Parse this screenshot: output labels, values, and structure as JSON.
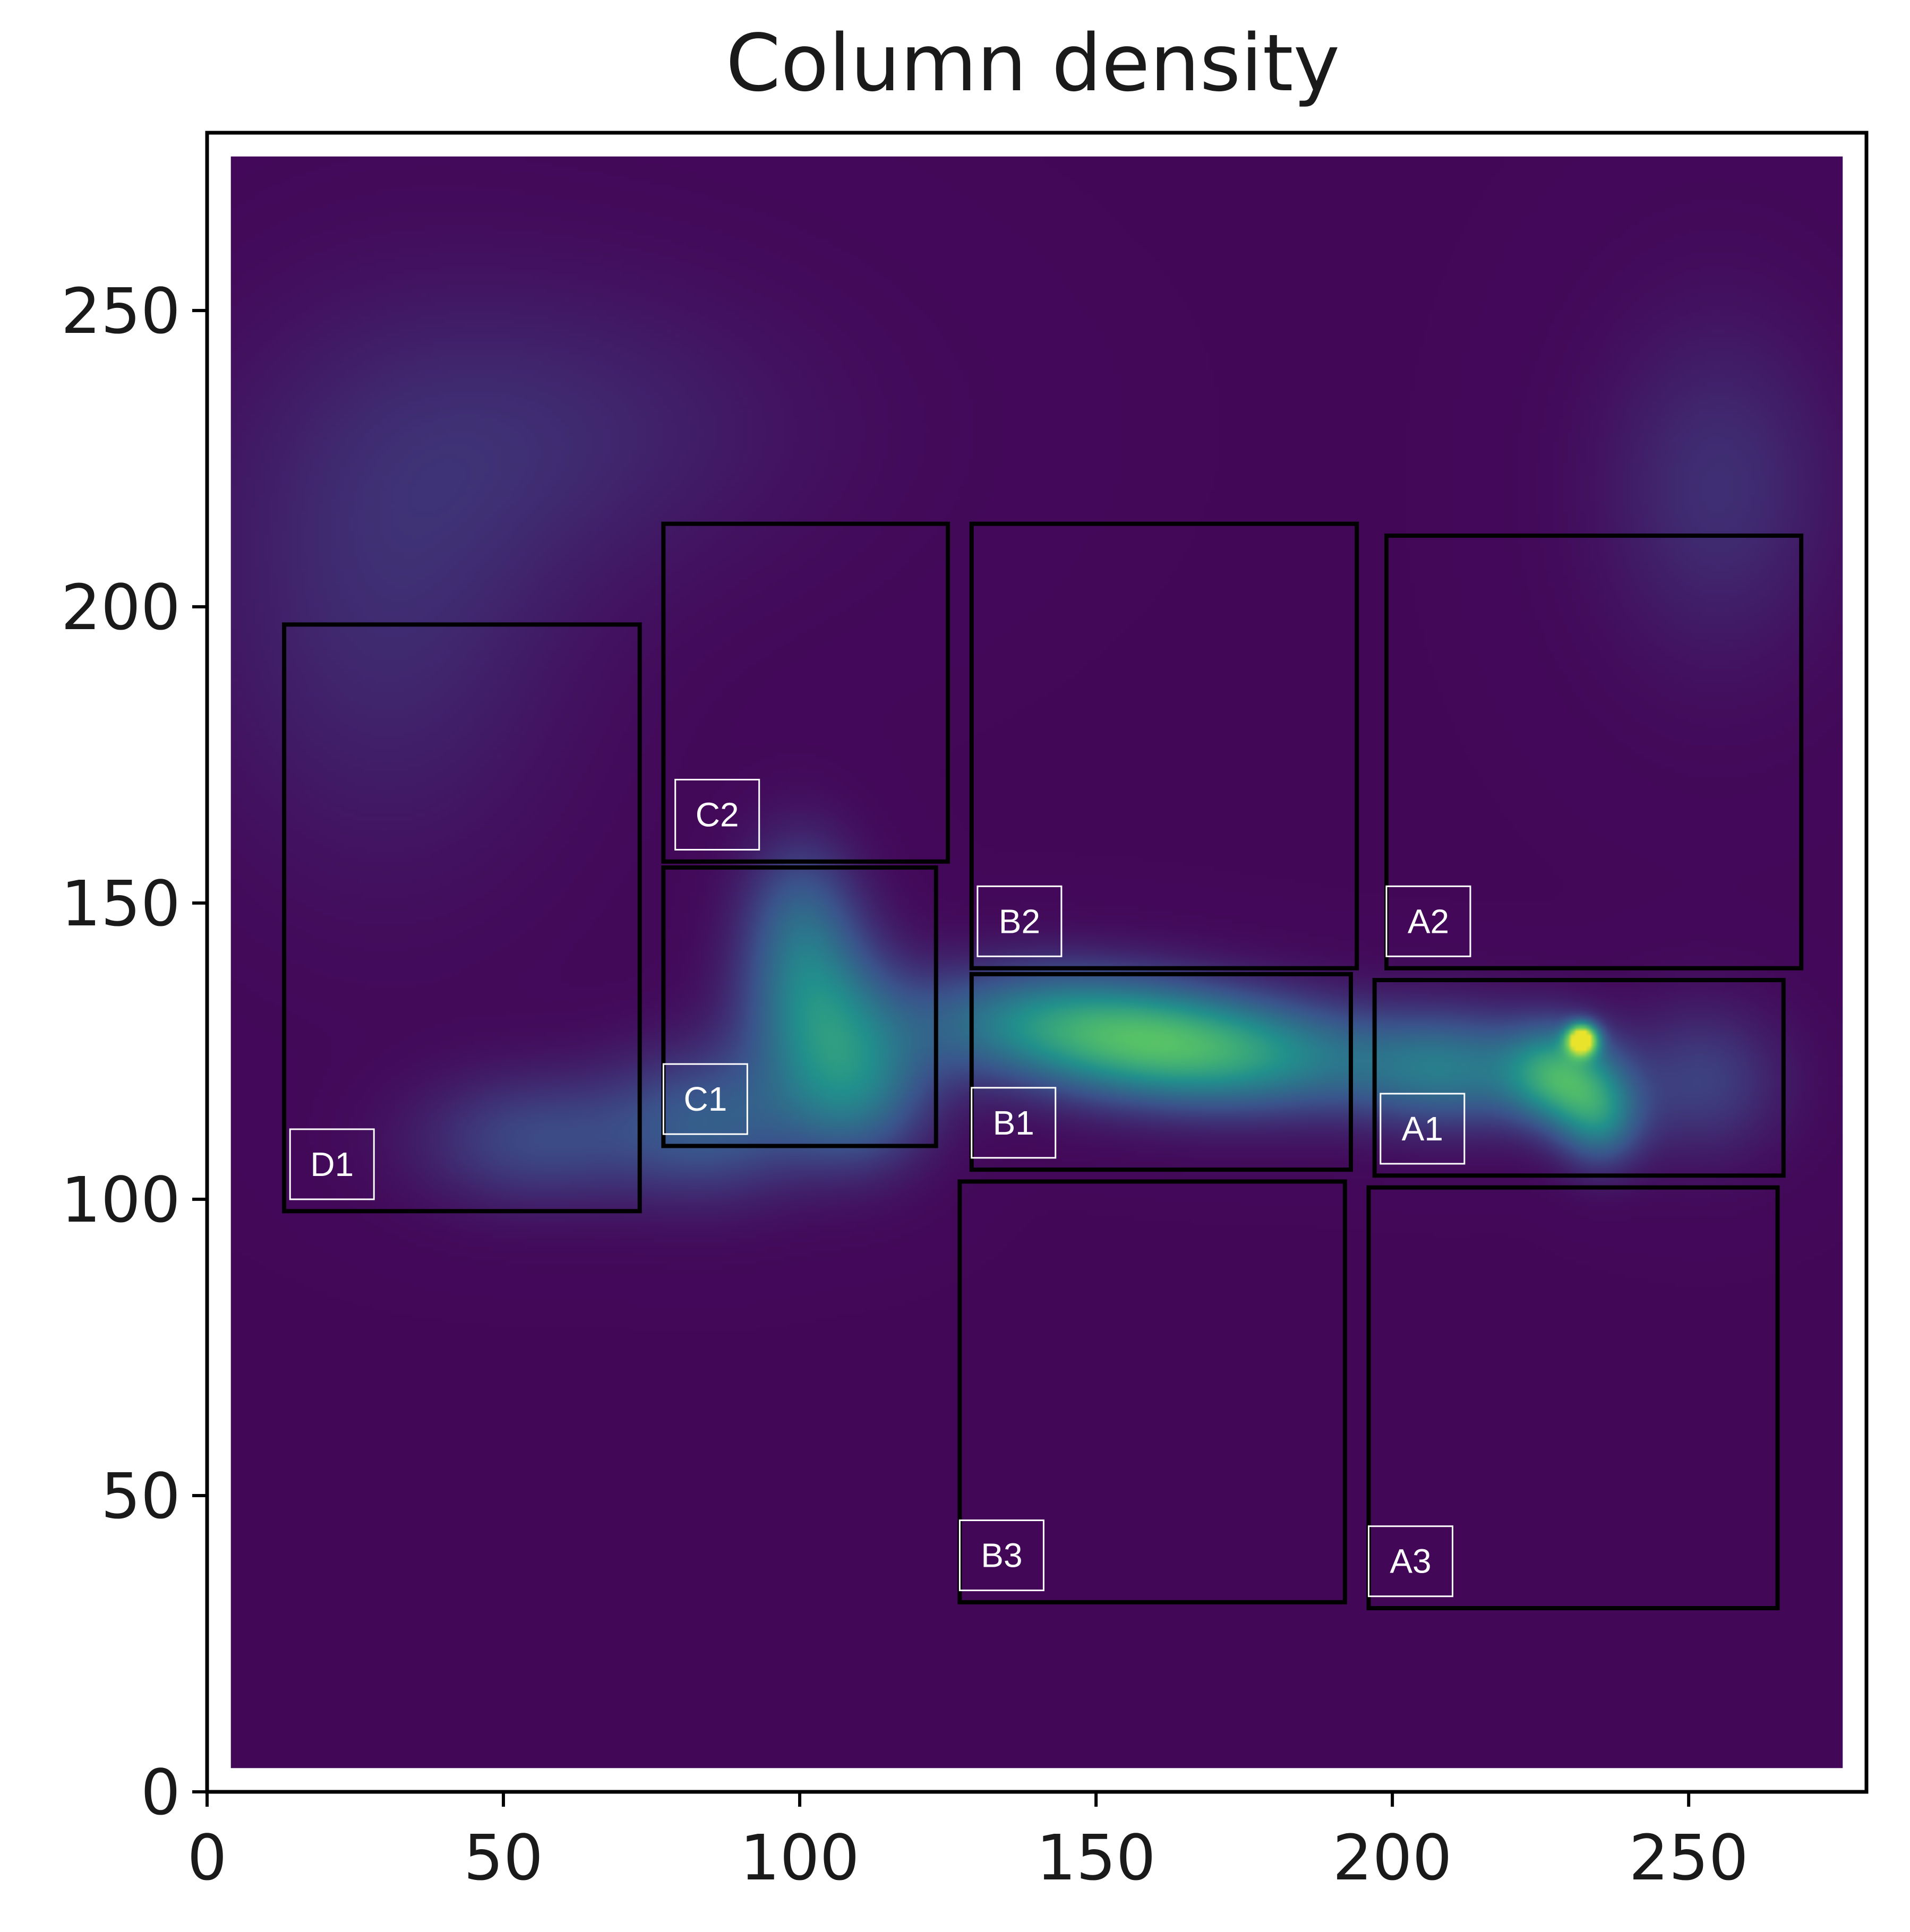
{
  "chart_data": {
    "type": "heatmap",
    "title": "Column density",
    "xlabel": "",
    "ylabel": "",
    "xlim": [
      0,
      280
    ],
    "ylim": [
      0,
      280
    ],
    "x_ticks": [
      0,
      50,
      100,
      150,
      200,
      250
    ],
    "y_ticks": [
      0,
      50,
      100,
      150,
      200,
      250
    ],
    "image_extent": [
      4,
      276,
      4,
      276
    ],
    "colormap": "viridis",
    "colors": {
      "background": "#440154",
      "filament": "#3b528b",
      "peak": "#fde725",
      "box": "#000000",
      "label_border": "#ffffff"
    },
    "filament_blobs": [
      {
        "x": 55,
        "y": 110,
        "sx": 14,
        "sy": 8,
        "amp": 0.22
      },
      {
        "x": 85,
        "y": 113,
        "sx": 12,
        "sy": 9,
        "amp": 0.28
      },
      {
        "x": 103,
        "y": 132,
        "sx": 9,
        "sy": 10,
        "amp": 0.38
      },
      {
        "x": 110,
        "y": 118,
        "sx": 9,
        "sy": 9,
        "amp": 0.34
      },
      {
        "x": 100,
        "y": 148,
        "sx": 7,
        "sy": 10,
        "amp": 0.26
      },
      {
        "x": 140,
        "y": 130,
        "sx": 16,
        "sy": 7,
        "amp": 0.42
      },
      {
        "x": 160,
        "y": 126,
        "sx": 14,
        "sy": 7,
        "amp": 0.46
      },
      {
        "x": 180,
        "y": 124,
        "sx": 14,
        "sy": 7,
        "amp": 0.36
      },
      {
        "x": 210,
        "y": 122,
        "sx": 12,
        "sy": 7,
        "amp": 0.4
      },
      {
        "x": 228,
        "y": 121,
        "sx": 6,
        "sy": 6,
        "amp": 0.5
      },
      {
        "x": 235,
        "y": 114,
        "sx": 5,
        "sy": 6,
        "amp": 0.4
      },
      {
        "x": 232,
        "y": 127,
        "sx": 1.8,
        "sy": 1.8,
        "amp": 1.0
      },
      {
        "x": 252,
        "y": 120,
        "sx": 10,
        "sy": 9,
        "amp": 0.2
      },
      {
        "x": 30,
        "y": 200,
        "sx": 22,
        "sy": 30,
        "amp": 0.12
      },
      {
        "x": 60,
        "y": 230,
        "sx": 30,
        "sy": 18,
        "amp": 0.1
      },
      {
        "x": 255,
        "y": 220,
        "sx": 14,
        "sy": 20,
        "amp": 0.14
      }
    ],
    "regions": [
      {
        "label": "A1",
        "x0": 197,
        "x1": 266,
        "y0": 104,
        "y1": 137,
        "lx": 198,
        "ly": 106
      },
      {
        "label": "A2",
        "x0": 199,
        "x1": 269,
        "y0": 139,
        "y1": 212,
        "lx": 199,
        "ly": 141
      },
      {
        "label": "A3",
        "x0": 196,
        "x1": 265,
        "y0": 31,
        "y1": 102,
        "lx": 196,
        "ly": 33
      },
      {
        "label": "B1",
        "x0": 129,
        "x1": 193,
        "y0": 105,
        "y1": 138,
        "lx": 129,
        "ly": 107
      },
      {
        "label": "B2",
        "x0": 129,
        "x1": 194,
        "y0": 139,
        "y1": 214,
        "lx": 130,
        "ly": 141
      },
      {
        "label": "B3",
        "x0": 127,
        "x1": 192,
        "y0": 32,
        "y1": 103,
        "lx": 127,
        "ly": 34
      },
      {
        "label": "C1",
        "x0": 77,
        "x1": 123,
        "y0": 109,
        "y1": 156,
        "lx": 77,
        "ly": 111
      },
      {
        "label": "C2",
        "x0": 77,
        "x1": 125,
        "y0": 157,
        "y1": 214,
        "lx": 79,
        "ly": 159
      },
      {
        "label": "D1",
        "x0": 13,
        "x1": 73,
        "y0": 98,
        "y1": 197,
        "lx": 14,
        "ly": 100
      }
    ]
  }
}
